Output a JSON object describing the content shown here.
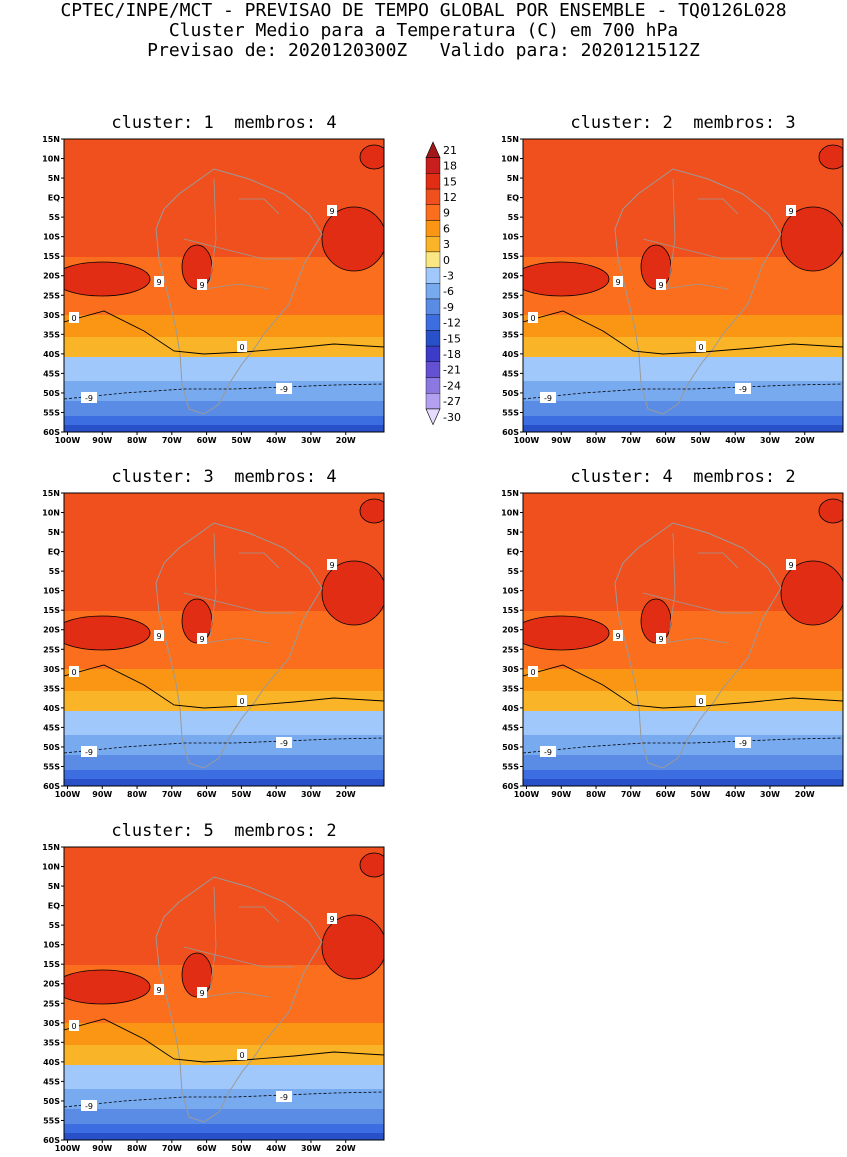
{
  "header": {
    "line1": "CPTEC/INPE/MCT - PREVISAO DE TEMPO GLOBAL POR ENSEMBLE - TQ0126L028",
    "line2": "Cluster Medio para a Temperatura (C) em 700 hPa",
    "line3": "Previsao de: 2020120300Z   Valido para: 2020121512Z"
  },
  "panels": [
    {
      "title": "cluster: 1  membros: 4",
      "cluster": 1,
      "members": 4
    },
    {
      "title": "cluster: 2  membros: 3",
      "cluster": 2,
      "members": 3
    },
    {
      "title": "cluster: 3  membros: 4",
      "cluster": 3,
      "members": 4
    },
    {
      "title": "cluster: 4  membros: 2",
      "cluster": 4,
      "members": 2
    },
    {
      "title": "cluster: 5  membros: 2",
      "cluster": 5,
      "members": 2
    }
  ],
  "map": {
    "lat_labels": [
      "15N",
      "10N",
      "5N",
      "EQ",
      "5S",
      "10S",
      "15S",
      "20S",
      "25S",
      "30S",
      "35S",
      "40S",
      "45S",
      "50S",
      "55S",
      "60S"
    ],
    "lon_labels": [
      "100W",
      "90W",
      "80W",
      "70W",
      "60W",
      "50W",
      "40W",
      "30W",
      "20W"
    ],
    "lat_range": [
      15,
      -60
    ],
    "lon_range": [
      -101,
      -9
    ]
  },
  "contour_labels": {
    "warm": "9",
    "zero": "0",
    "cold": "-9"
  },
  "colorbar": {
    "labels": [
      "21",
      "18",
      "15",
      "12",
      "9",
      "6",
      "3",
      "0",
      "-3",
      "-6",
      "-9",
      "-12",
      "-15",
      "-18",
      "-21",
      "-24",
      "-27",
      "-30"
    ],
    "colors": [
      "#a01818",
      "#c81e1e",
      "#e12d14",
      "#f0501e",
      "#fa6e1e",
      "#fa9614",
      "#fab428",
      "#fae682",
      "#a0c8fa",
      "#78aaf0",
      "#5a8ce6",
      "#3c6ee1",
      "#2850c8",
      "#3c3cc8",
      "#6450d2",
      "#8c78e1",
      "#b4a0f0",
      "#e6dcff"
    ]
  }
}
